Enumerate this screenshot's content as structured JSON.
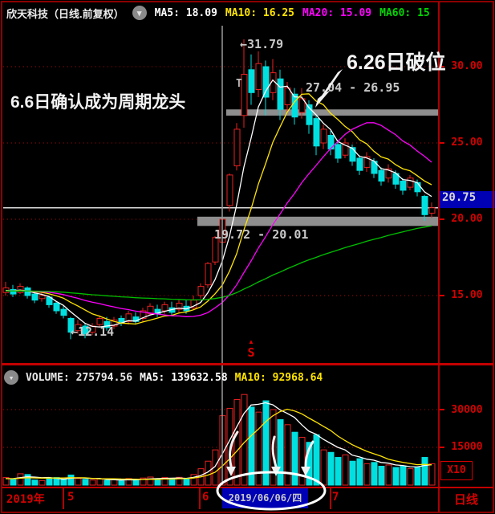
{
  "header": {
    "title": "欣天科技（日线.前复权）",
    "collapse_icon": "chevron-down-circle-icon",
    "mas": [
      {
        "label": "MA5:",
        "value": "18.09",
        "color": "#ffffff"
      },
      {
        "label": "MA10:",
        "value": "16.25",
        "color": "#ffe400"
      },
      {
        "label": "MA20:",
        "value": "15.09",
        "color": "#ff00ff"
      },
      {
        "label": "MA60:",
        "value": "15",
        "color": "#00d800"
      }
    ]
  },
  "price_axis": {
    "ticks": [
      "30.00",
      "25.00",
      "20.00",
      "15.00"
    ],
    "current_price": "20.75"
  },
  "volume_header": {
    "collapse_icon": "chevron-down-circle-icon",
    "items": [
      {
        "label": "VOLUME:",
        "value": "275794.56",
        "color": "#e8e8e8"
      },
      {
        "label": "MA5:",
        "value": "139632.58",
        "color": "#ffffff"
      },
      {
        "label": "MA10:",
        "value": "92968.64",
        "color": "#ffe400"
      }
    ]
  },
  "volume_axis": {
    "ticks": [
      "30000",
      "15000"
    ],
    "unit": "X10"
  },
  "timeline": {
    "year": "2019年",
    "months": [
      "5",
      "6",
      "7"
    ],
    "highlight_date": "2019/06/06/四",
    "period": "日线"
  },
  "annotations": {
    "leader": "6.6日确认成为周期龙头",
    "breakdown": "6.26日破位",
    "peak": "←31.79",
    "zone_high": "27.04 - 26.95",
    "zone_low": "19.72 - 20.01",
    "bottom": "←12.14",
    "t_marker": "T",
    "s_marker_triangle": "▲",
    "s_marker_letter": "S"
  },
  "chart_data": {
    "type": "candlestick",
    "title": "欣天科技 日线 前复权",
    "x_axis": {
      "labels": [
        "2019年",
        "5",
        "6",
        "7"
      ],
      "crosshair_date": "2019/06/06/四"
    },
    "y_axis": {
      "ticks": [
        30,
        25,
        20,
        15
      ],
      "range": [
        11.8,
        32.5
      ]
    },
    "volume_y_axis": {
      "ticks": [
        30000,
        15000
      ],
      "unit": "X10"
    },
    "last_price": 20.75,
    "crosshair_index": 30,
    "ma_periods_price": [
      5,
      10,
      20,
      60
    ],
    "ma_periods_volume": [
      5,
      10
    ],
    "ma_seed_price": 15.3,
    "ma_seed_volume": 2500,
    "zones": [
      {
        "label": "27.04 - 26.95",
        "high": 27.04,
        "low": 26.95,
        "start_index": 31
      },
      {
        "label": "19.72 - 20.01",
        "high": 20.01,
        "low": 19.72,
        "start_index": 27
      }
    ],
    "colors": {
      "up": "#e82222",
      "down": "#00e0e0",
      "ma5": "#ffffff",
      "ma10": "#ffe400",
      "ma20": "#ff00ff",
      "ma60": "#00c000",
      "grid": "#b80000",
      "axis_red": "#d40000",
      "zone_gray": "#8e8e8e",
      "price_line": "#dddddd",
      "crosshair": "#9a9a9a",
      "highlight_blue": "#0000b4"
    },
    "candles": [
      [
        15.2,
        15.9,
        15.0,
        15.5
      ],
      [
        15.4,
        15.7,
        14.9,
        15.1
      ],
      [
        15.2,
        15.8,
        15.1,
        15.6
      ],
      [
        15.5,
        15.6,
        14.8,
        15.0
      ],
      [
        15.1,
        15.2,
        14.5,
        14.7
      ],
      [
        14.8,
        15.2,
        14.6,
        15.0
      ],
      [
        14.9,
        15.0,
        14.2,
        14.4
      ],
      [
        14.5,
        14.6,
        13.8,
        14.0
      ],
      [
        14.1,
        14.3,
        13.5,
        13.7
      ],
      [
        13.5,
        13.6,
        12.14,
        12.6
      ],
      [
        12.7,
        13.4,
        12.5,
        13.1
      ],
      [
        13.0,
        13.2,
        12.2,
        12.5
      ],
      [
        12.6,
        13.2,
        12.4,
        13.0
      ],
      [
        13.1,
        13.7,
        12.9,
        13.5
      ],
      [
        13.3,
        13.6,
        12.7,
        12.9
      ],
      [
        13.0,
        13.6,
        12.8,
        13.4
      ],
      [
        13.5,
        13.7,
        13.0,
        13.2
      ],
      [
        13.3,
        14.0,
        13.1,
        13.8
      ],
      [
        13.6,
        13.9,
        13.1,
        13.3
      ],
      [
        13.5,
        14.2,
        13.3,
        14.0
      ],
      [
        13.8,
        14.5,
        13.7,
        14.3
      ],
      [
        14.1,
        14.4,
        13.6,
        13.8
      ],
      [
        14.0,
        14.6,
        13.8,
        14.4
      ],
      [
        14.2,
        14.6,
        13.7,
        13.9
      ],
      [
        14.1,
        14.7,
        13.9,
        14.5
      ],
      [
        14.3,
        14.7,
        13.8,
        14.0
      ],
      [
        14.2,
        15.0,
        14.1,
        14.7
      ],
      [
        15.0,
        15.8,
        14.8,
        15.6
      ],
      [
        15.7,
        17.2,
        15.5,
        17.1
      ],
      [
        17.2,
        18.9,
        17.0,
        18.8
      ],
      [
        18.5,
        20.01,
        18.2,
        20.0
      ],
      [
        20.9,
        23.0,
        20.5,
        22.9
      ],
      [
        23.5,
        26.3,
        23.2,
        25.9
      ],
      [
        26.8,
        31.79,
        26.0,
        29.5
      ],
      [
        29.8,
        30.8,
        27.5,
        28.3
      ],
      [
        28.5,
        31.0,
        28.0,
        30.2
      ],
      [
        30.0,
        30.4,
        26.8,
        28.0
      ],
      [
        28.3,
        30.5,
        27.8,
        29.6
      ],
      [
        29.2,
        29.8,
        26.5,
        27.2
      ],
      [
        27.5,
        29.0,
        27.0,
        28.6
      ],
      [
        28.2,
        28.6,
        26.2,
        26.7
      ],
      [
        27.0,
        28.6,
        26.6,
        27.9
      ],
      [
        27.5,
        27.8,
        25.6,
        26.2
      ],
      [
        26.6,
        26.9,
        24.2,
        24.8
      ],
      [
        25.0,
        26.2,
        24.6,
        25.9
      ],
      [
        25.5,
        25.8,
        24.2,
        24.6
      ],
      [
        24.9,
        25.2,
        23.7,
        24.0
      ],
      [
        24.2,
        25.3,
        24.0,
        25.0
      ],
      [
        24.7,
        24.9,
        23.5,
        23.8
      ],
      [
        24.0,
        24.2,
        22.9,
        23.2
      ],
      [
        23.4,
        24.4,
        23.1,
        24.1
      ],
      [
        23.8,
        24.0,
        22.7,
        23.0
      ],
      [
        23.2,
        23.4,
        22.2,
        22.5
      ],
      [
        22.7,
        23.6,
        22.4,
        23.3
      ],
      [
        23.0,
        23.2,
        22.0,
        22.3
      ],
      [
        22.5,
        22.7,
        21.6,
        21.9
      ],
      [
        22.1,
        22.9,
        21.9,
        22.7
      ],
      [
        22.4,
        22.6,
        21.5,
        21.8
      ],
      [
        21.5,
        21.6,
        19.9,
        20.3
      ],
      [
        20.4,
        21.1,
        20.1,
        20.75
      ]
    ],
    "volumes": [
      3000,
      2200,
      4500,
      4200,
      2000,
      1800,
      2600,
      3000,
      2200,
      4000,
      2600,
      2300,
      2000,
      2400,
      1900,
      2100,
      1700,
      2600,
      2000,
      2800,
      3200,
      2300,
      3000,
      2400,
      3100,
      2600,
      4200,
      6500,
      9500,
      14000,
      27580,
      30500,
      34000,
      36000,
      31000,
      29000,
      33500,
      30000,
      26000,
      24000,
      21000,
      19000,
      17000,
      20000,
      14000,
      13000,
      11000,
      12000,
      9500,
      10500,
      8500,
      9000,
      7500,
      8000,
      7000,
      7500,
      6500,
      7000,
      11000,
      8500
    ]
  }
}
